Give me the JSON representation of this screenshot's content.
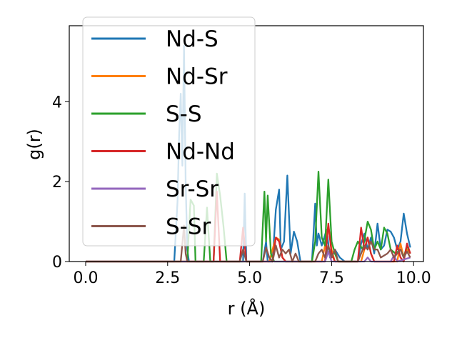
{
  "chart_data": {
    "type": "line",
    "xlabel": "r (Å)",
    "ylabel": "g(r)",
    "xlim": [
      -0.5,
      10.3
    ],
    "ylim": [
      0,
      5.9
    ],
    "xticks": [
      0.0,
      2.5,
      5.0,
      7.5,
      10.0
    ],
    "xtick_labels": [
      "0.0",
      "2.5",
      "5.0",
      "7.5",
      "10.0"
    ],
    "yticks": [
      0,
      2,
      4
    ],
    "ytick_labels": [
      "0",
      "2",
      "4"
    ],
    "grid": false,
    "legend_position": "upper-left",
    "series": [
      {
        "name": "Nd-S",
        "color": "#1f77b4",
        "points": [
          [
            0,
            0
          ],
          [
            2.7,
            0
          ],
          [
            2.8,
            1.5
          ],
          [
            2.85,
            3.2
          ],
          [
            2.9,
            4.2
          ],
          [
            2.95,
            2.4
          ],
          [
            3.0,
            5.4
          ],
          [
            3.05,
            2.0
          ],
          [
            3.1,
            0.3
          ],
          [
            3.15,
            0
          ],
          [
            4.8,
            0
          ],
          [
            4.85,
            1.7
          ],
          [
            4.9,
            0
          ],
          [
            5.4,
            0
          ],
          [
            5.5,
            0.5
          ],
          [
            5.55,
            0
          ],
          [
            5.7,
            0
          ],
          [
            5.8,
            1.3
          ],
          [
            5.9,
            1.8
          ],
          [
            5.95,
            0.3
          ],
          [
            6.05,
            0.5
          ],
          [
            6.15,
            2.15
          ],
          [
            6.25,
            0.2
          ],
          [
            6.35,
            0.75
          ],
          [
            6.45,
            0.5
          ],
          [
            6.55,
            0
          ],
          [
            6.9,
            0
          ],
          [
            7.0,
            1.45
          ],
          [
            7.05,
            0.4
          ],
          [
            7.1,
            0.7
          ],
          [
            7.2,
            0.4
          ],
          [
            7.35,
            0.8
          ],
          [
            7.45,
            0.1
          ],
          [
            7.6,
            0.3
          ],
          [
            7.75,
            0.1
          ],
          [
            7.9,
            0
          ],
          [
            8.3,
            0
          ],
          [
            8.4,
            0.45
          ],
          [
            8.5,
            0.7
          ],
          [
            8.6,
            0.3
          ],
          [
            8.7,
            0.6
          ],
          [
            8.8,
            0.2
          ],
          [
            8.9,
            0.95
          ],
          [
            9.0,
            0.3
          ],
          [
            9.1,
            0.4
          ],
          [
            9.2,
            0.8
          ],
          [
            9.3,
            0.75
          ],
          [
            9.4,
            0.6
          ],
          [
            9.5,
            0.3
          ],
          [
            9.6,
            0.5
          ],
          [
            9.7,
            1.2
          ],
          [
            9.8,
            0.7
          ],
          [
            9.9,
            0.35
          ]
        ]
      },
      {
        "name": "Nd-Sr",
        "color": "#ff7f0e",
        "points": [
          [
            0,
            0
          ],
          [
            5.6,
            0
          ],
          [
            5.7,
            0.3
          ],
          [
            5.8,
            0.6
          ],
          [
            5.9,
            0.55
          ],
          [
            6.0,
            0.1
          ],
          [
            6.1,
            0
          ],
          [
            7.2,
            0
          ],
          [
            7.3,
            0.4
          ],
          [
            7.4,
            0.9
          ],
          [
            7.5,
            0.3
          ],
          [
            7.6,
            0
          ],
          [
            8.4,
            0
          ],
          [
            8.5,
            0.3
          ],
          [
            8.6,
            0.6
          ],
          [
            8.7,
            0.2
          ],
          [
            8.8,
            0
          ],
          [
            9.5,
            0
          ],
          [
            9.6,
            0.45
          ],
          [
            9.7,
            0.1
          ],
          [
            9.8,
            0.3
          ],
          [
            9.9,
            0.2
          ]
        ]
      },
      {
        "name": "S-S",
        "color": "#2ca02c",
        "points": [
          [
            0,
            0
          ],
          [
            3.1,
            0
          ],
          [
            3.2,
            1.55
          ],
          [
            3.3,
            1.4
          ],
          [
            3.35,
            0
          ],
          [
            3.6,
            0
          ],
          [
            3.7,
            1.35
          ],
          [
            3.8,
            0
          ],
          [
            3.9,
            0
          ],
          [
            4.0,
            2.2
          ],
          [
            4.1,
            1.65
          ],
          [
            4.2,
            0.9
          ],
          [
            4.3,
            0
          ],
          [
            5.35,
            0
          ],
          [
            5.45,
            1.75
          ],
          [
            5.5,
            0.5
          ],
          [
            5.55,
            1.65
          ],
          [
            5.65,
            0.2
          ],
          [
            5.75,
            0
          ],
          [
            6.9,
            0
          ],
          [
            7.0,
            0.5
          ],
          [
            7.1,
            2.25
          ],
          [
            7.2,
            0.6
          ],
          [
            7.3,
            0.4
          ],
          [
            7.4,
            2.05
          ],
          [
            7.5,
            0.5
          ],
          [
            7.6,
            0.2
          ],
          [
            7.7,
            0
          ],
          [
            8.1,
            0
          ],
          [
            8.2,
            0.3
          ],
          [
            8.3,
            0.5
          ],
          [
            8.45,
            0.3
          ],
          [
            8.6,
            1.0
          ],
          [
            8.7,
            0.8
          ],
          [
            8.8,
            0.3
          ],
          [
            8.9,
            0.5
          ],
          [
            9.0,
            0.3
          ],
          [
            9.1,
            0.85
          ],
          [
            9.2,
            0.7
          ],
          [
            9.3,
            0.3
          ],
          [
            9.45,
            0.2
          ],
          [
            9.6,
            0.3
          ],
          [
            9.7,
            0.1
          ],
          [
            9.8,
            0.4
          ],
          [
            9.9,
            0.2
          ]
        ]
      },
      {
        "name": "Nd-Nd",
        "color": "#d62728",
        "points": [
          [
            0,
            0
          ],
          [
            3.9,
            0
          ],
          [
            4.0,
            1.75
          ],
          [
            4.1,
            0
          ],
          [
            4.7,
            0
          ],
          [
            4.8,
            0.85
          ],
          [
            4.9,
            0
          ],
          [
            5.7,
            0
          ],
          [
            5.8,
            0.6
          ],
          [
            5.9,
            0.5
          ],
          [
            6.0,
            0.1
          ],
          [
            6.1,
            0
          ],
          [
            7.3,
            0
          ],
          [
            7.4,
            0.95
          ],
          [
            7.5,
            0.2
          ],
          [
            7.6,
            0
          ],
          [
            8.3,
            0
          ],
          [
            8.4,
            0.85
          ],
          [
            8.5,
            0.3
          ],
          [
            8.6,
            0.6
          ],
          [
            8.7,
            0.2
          ],
          [
            8.8,
            0
          ],
          [
            9.4,
            0
          ],
          [
            9.5,
            0.4
          ],
          [
            9.6,
            0.1
          ],
          [
            9.7,
            0
          ],
          [
            9.8,
            0.45
          ],
          [
            9.9,
            0.2
          ]
        ]
      },
      {
        "name": "Sr-Sr",
        "color": "#9467bd",
        "points": [
          [
            0,
            0
          ],
          [
            7.3,
            0
          ],
          [
            7.4,
            0.25
          ],
          [
            7.5,
            0
          ],
          [
            8.5,
            0
          ],
          [
            8.6,
            0.1
          ],
          [
            8.7,
            0
          ],
          [
            9.3,
            0
          ],
          [
            9.4,
            0.15
          ],
          [
            9.5,
            0
          ],
          [
            9.9,
            0.1
          ]
        ]
      },
      {
        "name": "S-Sr",
        "color": "#8c564b",
        "points": [
          [
            0,
            0
          ],
          [
            2.9,
            0
          ],
          [
            3.0,
            0.9
          ],
          [
            3.05,
            0.2
          ],
          [
            3.1,
            0
          ],
          [
            4.7,
            0
          ],
          [
            4.8,
            0.3
          ],
          [
            4.9,
            0
          ],
          [
            5.4,
            0
          ],
          [
            5.5,
            0.35
          ],
          [
            5.6,
            0.1
          ],
          [
            5.7,
            0
          ],
          [
            5.8,
            0.4
          ],
          [
            5.9,
            0.1
          ],
          [
            6.0,
            0.3
          ],
          [
            6.1,
            0.2
          ],
          [
            6.2,
            0.3
          ],
          [
            6.3,
            0
          ],
          [
            6.4,
            0.2
          ],
          [
            6.5,
            0
          ],
          [
            7.0,
            0
          ],
          [
            7.1,
            0.2
          ],
          [
            7.2,
            0.3
          ],
          [
            7.3,
            0.1
          ],
          [
            7.4,
            0.4
          ],
          [
            7.5,
            0.1
          ],
          [
            7.6,
            0.3
          ],
          [
            7.7,
            0
          ],
          [
            8.3,
            0
          ],
          [
            8.4,
            0.2
          ],
          [
            8.5,
            0.4
          ],
          [
            8.6,
            0.3
          ],
          [
            8.7,
            0.5
          ],
          [
            8.8,
            0.3
          ],
          [
            8.9,
            0.3
          ],
          [
            9.0,
            0.1
          ],
          [
            9.2,
            0.2
          ],
          [
            9.3,
            0.3
          ],
          [
            9.4,
            0.1
          ],
          [
            9.6,
            0.3
          ],
          [
            9.7,
            0.1
          ],
          [
            9.8,
            0.25
          ],
          [
            9.9,
            0.1
          ]
        ]
      }
    ]
  }
}
